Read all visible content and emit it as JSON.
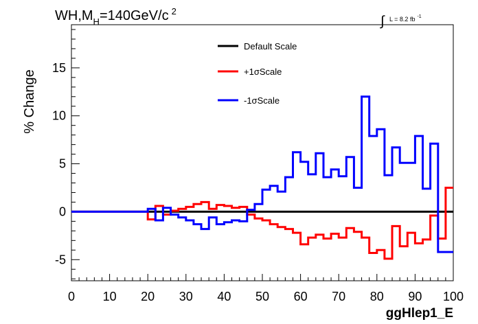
{
  "chart_data": {
    "type": "line",
    "title": {
      "main": "WH,M",
      "subscript": "H",
      "rest": "=140GeV/c",
      "superscript": "2"
    },
    "luminosity": {
      "text": "L = 8.2 fb",
      "superscript": "-1"
    },
    "xlabel": "ggHlep1_E",
    "ylabel": "% Change",
    "xlim": [
      0,
      100
    ],
    "ylim": [
      -7.2,
      19.5
    ],
    "x_ticks": [
      0,
      10,
      20,
      30,
      40,
      50,
      60,
      70,
      80,
      90,
      100
    ],
    "y_ticks": [
      -5,
      0,
      5,
      10,
      15
    ],
    "grid": false,
    "legend_position": "top-center",
    "bin_edges": [
      0,
      2,
      4,
      6,
      8,
      10,
      12,
      14,
      16,
      18,
      20,
      22,
      24,
      26,
      28,
      30,
      32,
      34,
      36,
      38,
      40,
      42,
      44,
      46,
      48,
      50,
      52,
      54,
      56,
      58,
      60,
      62,
      64,
      66,
      68,
      70,
      72,
      74,
      76,
      78,
      80,
      82,
      84,
      86,
      88,
      90,
      92,
      94,
      96,
      98,
      100
    ],
    "series": [
      {
        "name": "Default Scale",
        "color": "#000000",
        "values": [
          0,
          0,
          0,
          0,
          0,
          0,
          0,
          0,
          0,
          0,
          0,
          0,
          0,
          0,
          0,
          0,
          0,
          0,
          0,
          0,
          0,
          0,
          0,
          0,
          0,
          0,
          0,
          0,
          0,
          0,
          0,
          0,
          0,
          0,
          0,
          0,
          0,
          0,
          0,
          0,
          0,
          0,
          0,
          0,
          0,
          0,
          0,
          0,
          0,
          0
        ]
      },
      {
        "name": "+1σScale",
        "color": "#ff0000",
        "values": [
          0,
          0,
          0,
          0,
          0,
          0,
          0,
          0,
          0,
          0,
          -0.8,
          0.6,
          -0.3,
          0.1,
          0.3,
          0.5,
          0.8,
          1.0,
          0.3,
          0.7,
          0.6,
          0.4,
          0.5,
          -0.3,
          -0.7,
          -0.9,
          -1.3,
          -1.6,
          -1.8,
          -2.2,
          -3.4,
          -2.7,
          -2.4,
          -2.8,
          -2.3,
          -2.7,
          -1.7,
          -2.1,
          -2.7,
          -4.3,
          -4.0,
          -4.9,
          -1.5,
          -3.6,
          -2.2,
          -3.3,
          -2.9,
          -0.4,
          -2.8,
          2.5
        ]
      },
      {
        "name": "-1σScale",
        "color": "#0000ff",
        "values": [
          0,
          0,
          0,
          0,
          0,
          0,
          0,
          0,
          0,
          0,
          0.3,
          -0.9,
          0.4,
          -0.3,
          -0.6,
          -0.9,
          -1.3,
          -1.8,
          -0.6,
          -1.3,
          -1.1,
          -0.9,
          -1.0,
          0.2,
          0.8,
          2.3,
          2.7,
          2.1,
          3.6,
          6.2,
          5.2,
          3.9,
          6.1,
          3.6,
          4.4,
          3.7,
          5.7,
          2.5,
          12.0,
          7.9,
          8.6,
          3.8,
          6.7,
          5.1,
          5.1,
          7.9,
          2.4,
          7.1,
          -4.2,
          -4.2
        ]
      }
    ]
  }
}
